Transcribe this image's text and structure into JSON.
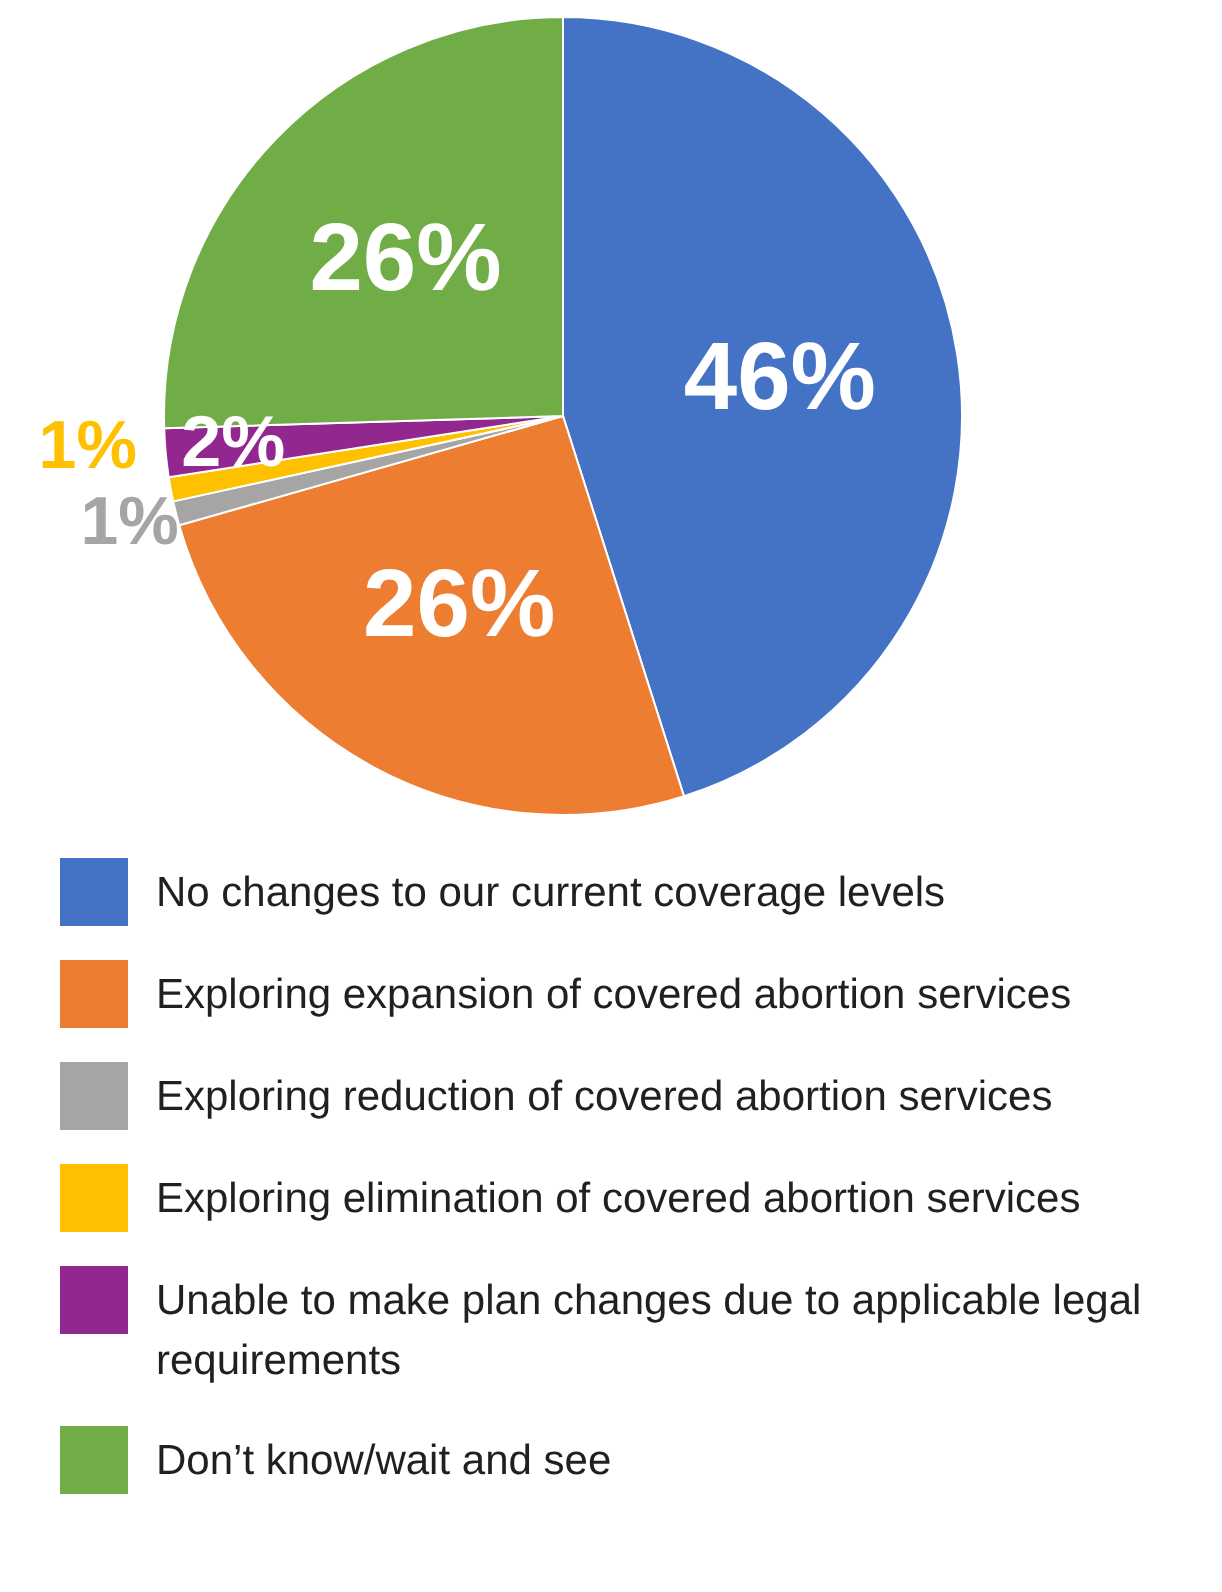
{
  "chart_data": {
    "type": "pie",
    "categories": [
      "No changes to our current coverage levels",
      "Exploring expansion of covered abortion services",
      "Exploring reduction of covered abortion services",
      "Exploring elimination of covered abortion services",
      "Unable to make plan changes due to applicable legal requirements",
      "Don’t know/wait and see"
    ],
    "values": [
      46,
      26,
      1,
      1,
      2,
      26
    ],
    "value_labels": [
      "46%",
      "26%",
      "1%",
      "1%",
      "2%",
      "26%"
    ],
    "colors": [
      "#4472c4",
      "#ed7d31",
      "#a5a5a5",
      "#ffc000",
      "#92278f",
      "#70ad47"
    ],
    "legend": "bottom"
  }
}
